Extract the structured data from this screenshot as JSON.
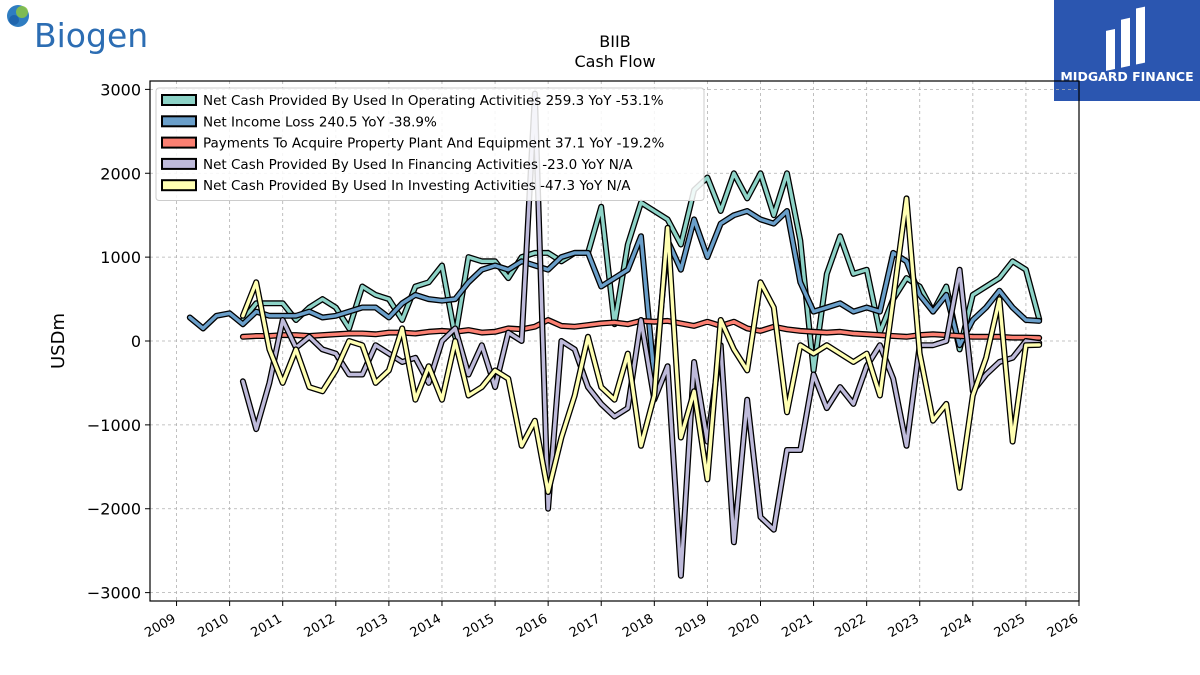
{
  "branding": {
    "left_logo_text": "Biogen",
    "right_logo_text": "MIDGARD FINANCE",
    "right_logo_bg": "#2b56b0"
  },
  "chart_data": {
    "type": "line",
    "title": "BIIB",
    "subtitle": "Cash Flow",
    "ylabel": "USDm",
    "xlabel": "",
    "xlim": [
      2008.5,
      2026.0
    ],
    "ylim": [
      -3100,
      3100
    ],
    "yticks": [
      -3000,
      -2000,
      -1000,
      0,
      1000,
      2000,
      3000
    ],
    "ytick_labels": [
      "−3000",
      "−2000",
      "−1000",
      "0",
      "1000",
      "2000",
      "3000"
    ],
    "xticks": [
      2009,
      2010,
      2011,
      2012,
      2013,
      2014,
      2015,
      2016,
      2017,
      2018,
      2019,
      2020,
      2021,
      2022,
      2023,
      2024,
      2025,
      2026
    ],
    "xtick_labels": [
      "2009",
      "2010",
      "2011",
      "2012",
      "2013",
      "2014",
      "2015",
      "2016",
      "2017",
      "2018",
      "2019",
      "2020",
      "2021",
      "2022",
      "2023",
      "2024",
      "2025",
      "2026"
    ],
    "grid": true,
    "legend_position": "top-left",
    "series": [
      {
        "name": "Net Cash Provided By Used In Operating Activities",
        "legend_label": "Net Cash Provided By Used In Operating Activities  259.3 YoY -53.1%",
        "color": "#8dd3c7",
        "x": [
          2010.25,
          2010.5,
          2010.75,
          2011.0,
          2011.25,
          2011.5,
          2011.75,
          2012.0,
          2012.25,
          2012.5,
          2012.75,
          2013.0,
          2013.25,
          2013.5,
          2013.75,
          2014.0,
          2014.25,
          2014.5,
          2014.75,
          2015.0,
          2015.25,
          2015.5,
          2015.75,
          2016.0,
          2016.25,
          2016.5,
          2016.75,
          2017.0,
          2017.25,
          2017.5,
          2017.75,
          2018.0,
          2018.25,
          2018.5,
          2018.75,
          2019.0,
          2019.25,
          2019.5,
          2019.75,
          2020.0,
          2020.25,
          2020.5,
          2020.75,
          2021.0,
          2021.25,
          2021.5,
          2021.75,
          2022.0,
          2022.25,
          2022.5,
          2022.75,
          2023.0,
          2023.25,
          2023.5,
          2023.75,
          2024.0,
          2024.25,
          2024.5,
          2024.75,
          2025.0,
          2025.25
        ],
        "values": [
          250,
          450,
          450,
          450,
          250,
          400,
          500,
          400,
          150,
          650,
          550,
          500,
          250,
          650,
          700,
          900,
          50,
          1000,
          950,
          950,
          750,
          1000,
          1050,
          1050,
          950,
          1050,
          1050,
          1600,
          200,
          1150,
          1650,
          1550,
          1450,
          1150,
          1800,
          1950,
          1550,
          2000,
          1700,
          2000,
          1500,
          2000,
          1200,
          -350,
          800,
          1250,
          800,
          850,
          100,
          500,
          750,
          650,
          350,
          650,
          -100,
          550,
          650,
          750,
          950,
          850,
          260
        ]
      },
      {
        "name": "Net Income Loss",
        "legend_label": "Net Income Loss  240.5 YoY -38.9%",
        "color": "#6a9fca",
        "x": [
          2009.25,
          2009.5,
          2009.75,
          2010.0,
          2010.25,
          2010.5,
          2010.75,
          2011.0,
          2011.25,
          2011.5,
          2011.75,
          2012.0,
          2012.25,
          2012.5,
          2012.75,
          2013.0,
          2013.25,
          2013.5,
          2013.75,
          2014.0,
          2014.25,
          2014.5,
          2014.75,
          2015.0,
          2015.25,
          2015.5,
          2015.75,
          2016.0,
          2016.25,
          2016.5,
          2016.75,
          2017.0,
          2017.25,
          2017.5,
          2017.75,
          2018.0,
          2018.25,
          2018.5,
          2018.75,
          2019.0,
          2019.25,
          2019.5,
          2019.75,
          2020.0,
          2020.25,
          2020.5,
          2020.75,
          2021.0,
          2021.25,
          2021.5,
          2021.75,
          2022.0,
          2022.25,
          2022.5,
          2022.75,
          2023.0,
          2023.25,
          2023.5,
          2023.75,
          2024.0,
          2024.25,
          2024.5,
          2024.75,
          2025.0,
          2025.25
        ],
        "values": [
          280,
          150,
          300,
          330,
          200,
          350,
          300,
          300,
          300,
          350,
          280,
          300,
          350,
          400,
          400,
          280,
          450,
          550,
          500,
          480,
          500,
          700,
          850,
          900,
          850,
          950,
          900,
          850,
          1000,
          1050,
          1050,
          650,
          750,
          850,
          1250,
          -450,
          1200,
          850,
          1450,
          1000,
          1400,
          1500,
          1550,
          1450,
          1400,
          1550,
          700,
          350,
          400,
          450,
          350,
          400,
          350,
          1050,
          950,
          550,
          350,
          550,
          -50,
          250,
          400,
          600,
          400,
          250,
          240
        ]
      },
      {
        "name": "Payments To Acquire Property Plant And Equipment",
        "legend_label": "Payments To Acquire Property Plant And Equipment  37.1 YoY -19.2%",
        "color": "#fb8072",
        "x": [
          2010.25,
          2010.5,
          2010.75,
          2011.0,
          2011.25,
          2011.5,
          2011.75,
          2012.0,
          2012.25,
          2012.5,
          2012.75,
          2013.0,
          2013.25,
          2013.5,
          2013.75,
          2014.0,
          2014.25,
          2014.5,
          2014.75,
          2015.0,
          2015.25,
          2015.5,
          2015.75,
          2016.0,
          2016.25,
          2016.5,
          2016.75,
          2017.0,
          2017.25,
          2017.5,
          2017.75,
          2018.0,
          2018.25,
          2018.5,
          2018.75,
          2019.0,
          2019.25,
          2019.5,
          2019.75,
          2020.0,
          2020.25,
          2020.5,
          2020.75,
          2021.0,
          2021.25,
          2021.5,
          2021.75,
          2022.0,
          2022.25,
          2022.5,
          2022.75,
          2023.0,
          2023.25,
          2023.5,
          2023.75,
          2024.0,
          2024.25,
          2024.5,
          2024.75,
          2025.0,
          2025.25
        ],
        "values": [
          50,
          60,
          60,
          70,
          70,
          60,
          70,
          80,
          90,
          90,
          80,
          100,
          100,
          90,
          110,
          120,
          110,
          130,
          100,
          110,
          150,
          140,
          170,
          250,
          180,
          170,
          190,
          210,
          220,
          200,
          240,
          230,
          240,
          210,
          180,
          230,
          180,
          230,
          150,
          120,
          170,
          140,
          120,
          110,
          100,
          110,
          90,
          80,
          70,
          60,
          50,
          70,
          80,
          70,
          60,
          50,
          50,
          50,
          40,
          40,
          37
        ]
      },
      {
        "name": "Net Cash Provided By Used In Financing Activities",
        "legend_label": "Net Cash Provided By Used In Financing Activities  -23.0 YoY N/A",
        "color": "#bebada",
        "x": [
          2010.25,
          2010.5,
          2010.75,
          2011.0,
          2011.25,
          2011.5,
          2011.75,
          2012.0,
          2012.25,
          2012.5,
          2012.75,
          2013.0,
          2013.25,
          2013.5,
          2013.75,
          2014.0,
          2014.25,
          2014.5,
          2014.75,
          2015.0,
          2015.25,
          2015.5,
          2015.75,
          2016.0,
          2016.25,
          2016.5,
          2016.75,
          2017.0,
          2017.25,
          2017.5,
          2017.75,
          2018.0,
          2018.25,
          2018.5,
          2018.75,
          2019.0,
          2019.25,
          2019.5,
          2019.75,
          2020.0,
          2020.25,
          2020.5,
          2020.75,
          2021.0,
          2021.25,
          2021.5,
          2021.75,
          2022.0,
          2022.25,
          2022.5,
          2022.75,
          2023.0,
          2023.25,
          2023.5,
          2023.75,
          2024.0,
          2024.25,
          2024.5,
          2024.75,
          2025.0,
          2025.25
        ],
        "values": [
          -480,
          -1050,
          -500,
          250,
          -80,
          50,
          -100,
          -150,
          -400,
          -400,
          -50,
          -150,
          -250,
          -200,
          -500,
          0,
          150,
          -400,
          -50,
          -550,
          100,
          0,
          2950,
          -2000,
          0,
          -100,
          -550,
          -750,
          -900,
          -800,
          250,
          -700,
          -300,
          -2800,
          -250,
          -1200,
          -50,
          -2400,
          -700,
          -2100,
          -2250,
          -1300,
          -1300,
          -400,
          -800,
          -550,
          -750,
          -300,
          -50,
          -450,
          -1250,
          -50,
          -50,
          0,
          850,
          -600,
          -400,
          -250,
          -200,
          0,
          -23
        ]
      },
      {
        "name": "Net Cash Provided By Used In Investing Activities",
        "legend_label": "Net Cash Provided By Used In Investing Activities  -47.3 YoY N/A",
        "color": "#ffffb3",
        "x": [
          2010.25,
          2010.5,
          2010.75,
          2011.0,
          2011.25,
          2011.5,
          2011.75,
          2012.0,
          2012.25,
          2012.5,
          2012.75,
          2013.0,
          2013.25,
          2013.5,
          2013.75,
          2014.0,
          2014.25,
          2014.5,
          2014.75,
          2015.0,
          2015.25,
          2015.5,
          2015.75,
          2016.0,
          2016.25,
          2016.5,
          2016.75,
          2017.0,
          2017.25,
          2017.5,
          2017.75,
          2018.0,
          2018.25,
          2018.5,
          2018.75,
          2019.0,
          2019.25,
          2019.5,
          2019.75,
          2020.0,
          2020.25,
          2020.5,
          2020.75,
          2021.0,
          2021.25,
          2021.5,
          2021.75,
          2022.0,
          2022.25,
          2022.5,
          2022.75,
          2023.0,
          2023.25,
          2023.5,
          2023.75,
          2024.0,
          2024.25,
          2024.5,
          2024.75,
          2025.0,
          2025.25
        ],
        "values": [
          300,
          700,
          -100,
          -500,
          -100,
          -550,
          -600,
          -350,
          0,
          -50,
          -500,
          -350,
          150,
          -700,
          -300,
          -700,
          0,
          -650,
          -550,
          -350,
          -450,
          -1250,
          -950,
          -1800,
          -1150,
          -650,
          50,
          -550,
          -700,
          -150,
          -1250,
          -650,
          1350,
          -1150,
          -600,
          -1650,
          250,
          -100,
          -350,
          700,
          400,
          -850,
          -50,
          -150,
          -50,
          -150,
          -250,
          -150,
          -650,
          500,
          1700,
          -150,
          -950,
          -750,
          -1750,
          -650,
          -200,
          500,
          -1200,
          -50,
          -47
        ]
      }
    ]
  }
}
